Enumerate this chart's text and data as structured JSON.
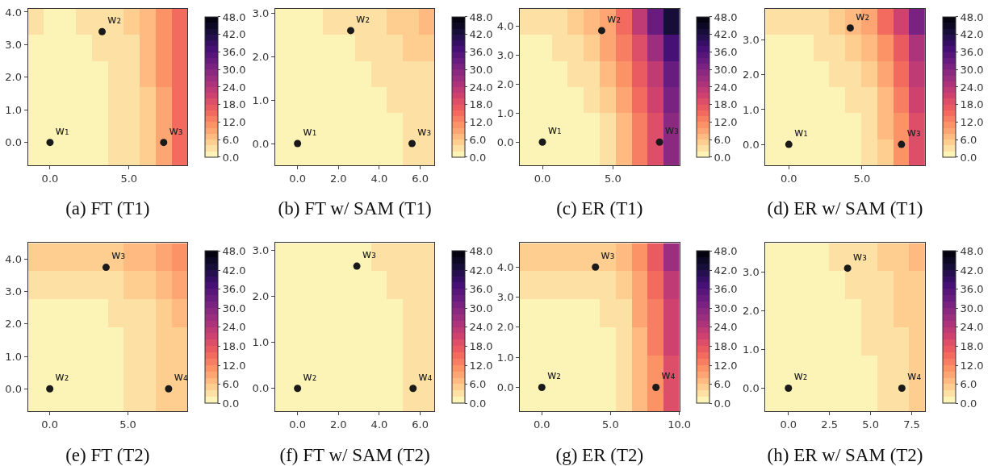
{
  "chart_data": [
    {
      "type": "heatmap",
      "xlabel": "(a) FT (T1)",
      "cells": [
        [
          3,
          1,
          1,
          3,
          3,
          3,
          5,
          7,
          11,
          15
        ],
        [
          1,
          1,
          1,
          1,
          3,
          3,
          3,
          7,
          11,
          15
        ],
        [
          1,
          1,
          1,
          1,
          1,
          3,
          3,
          7,
          11,
          15
        ],
        [
          1,
          1,
          1,
          1,
          1,
          3,
          3,
          5,
          9,
          15
        ],
        [
          1,
          1,
          1,
          1,
          1,
          3,
          3,
          5,
          9,
          15
        ],
        [
          1,
          1,
          1,
          1,
          1,
          3,
          3,
          5,
          9,
          15
        ]
      ],
      "clim": [
        0,
        48
      ],
      "cticks": [
        {
          "value": 0,
          "label": "0.0"
        },
        {
          "value": 6,
          "label": "6.0"
        },
        {
          "value": 12,
          "label": "12.0"
        },
        {
          "value": 18,
          "label": "18.0"
        },
        {
          "value": 24,
          "label": "24.0"
        },
        {
          "value": 30,
          "label": "30.0"
        },
        {
          "value": 36,
          "label": "36.0"
        },
        {
          "value": 42,
          "label": "42.0"
        },
        {
          "value": 48,
          "label": "48.0"
        }
      ],
      "xlim": [
        -1.4,
        8.7
      ],
      "ylim": [
        -0.7,
        4.1
      ],
      "xticks": [
        {
          "value": 0,
          "label": "0.0"
        },
        {
          "value": 5,
          "label": "5.0"
        }
      ],
      "yticks": [
        {
          "value": 0,
          "label": "0.0"
        },
        {
          "value": 1,
          "label": "1.0"
        },
        {
          "value": 2,
          "label": "2.0"
        },
        {
          "value": 3,
          "label": "3.0"
        },
        {
          "value": 4,
          "label": "4.0"
        }
      ],
      "marker": "circle",
      "series": [
        {
          "type": "scatter",
          "name": "w₁",
          "color": "#1a1a1a",
          "x": [
            0
          ],
          "values": [
            0
          ]
        },
        {
          "type": "scatter",
          "name": "w₂",
          "color": "#1a1a1a",
          "x": [
            3.3
          ],
          "values": [
            3.4
          ]
        },
        {
          "type": "scatter",
          "name": "w₃",
          "color": "#1a1a1a",
          "x": [
            7.2
          ],
          "values": [
            0
          ]
        }
      ]
    },
    {
      "type": "heatmap",
      "xlabel": "(b) FT w/ SAM (T1)",
      "cells": [
        [
          1,
          1,
          1,
          3,
          3,
          3,
          3,
          5,
          5,
          7
        ],
        [
          1,
          1,
          1,
          1,
          1,
          3,
          3,
          3,
          5,
          5
        ],
        [
          1,
          1,
          1,
          1,
          1,
          1,
          3,
          3,
          3,
          3
        ],
        [
          1,
          1,
          1,
          1,
          1,
          1,
          1,
          3,
          3,
          3
        ],
        [
          1,
          1,
          1,
          1,
          1,
          1,
          1,
          1,
          3,
          3
        ],
        [
          1,
          1,
          1,
          1,
          1,
          1,
          1,
          1,
          3,
          3
        ]
      ],
      "clim": [
        0,
        48
      ],
      "cticks": [
        {
          "value": 0,
          "label": "0.0"
        },
        {
          "value": 6,
          "label": "6.0"
        },
        {
          "value": 12,
          "label": "12.0"
        },
        {
          "value": 18,
          "label": "18.0"
        },
        {
          "value": 24,
          "label": "24.0"
        },
        {
          "value": 30,
          "label": "30.0"
        },
        {
          "value": 36,
          "label": "36.0"
        },
        {
          "value": 42,
          "label": "42.0"
        },
        {
          "value": 48,
          "label": "48.0"
        }
      ],
      "xlim": [
        -1.1,
        6.7
      ],
      "ylim": [
        -0.5,
        3.1
      ],
      "xticks": [
        {
          "value": 0,
          "label": "0.0"
        },
        {
          "value": 2,
          "label": "2.0"
        },
        {
          "value": 4,
          "label": "4.0"
        },
        {
          "value": 6,
          "label": "6.0"
        }
      ],
      "yticks": [
        {
          "value": 0,
          "label": "0.0"
        },
        {
          "value": 1,
          "label": "1.0"
        },
        {
          "value": 2,
          "label": "2.0"
        },
        {
          "value": 3,
          "label": "3.0"
        }
      ],
      "marker": "circle",
      "series": [
        {
          "type": "scatter",
          "name": "w₁",
          "color": "#1a1a1a",
          "x": [
            0
          ],
          "values": [
            0
          ]
        },
        {
          "type": "scatter",
          "name": "w₂",
          "color": "#1a1a1a",
          "x": [
            2.6
          ],
          "values": [
            2.6
          ]
        },
        {
          "type": "scatter",
          "name": "w₃",
          "color": "#1a1a1a",
          "x": [
            5.6
          ],
          "values": [
            0
          ]
        }
      ]
    },
    {
      "type": "heatmap",
      "xlabel": "(c) ER (T1)",
      "cells": [
        [
          3,
          3,
          3,
          5,
          7,
          9,
          15,
          23,
          33,
          43
        ],
        [
          1,
          1,
          3,
          3,
          5,
          9,
          13,
          19,
          27,
          37
        ],
        [
          1,
          1,
          1,
          3,
          3,
          7,
          11,
          17,
          23,
          33
        ],
        [
          1,
          1,
          1,
          1,
          3,
          5,
          9,
          15,
          21,
          31
        ],
        [
          1,
          1,
          1,
          1,
          1,
          3,
          7,
          13,
          19,
          29
        ],
        [
          1,
          1,
          1,
          1,
          1,
          3,
          7,
          13,
          19,
          29
        ]
      ],
      "clim": [
        0,
        48
      ],
      "cticks": [
        {
          "value": 0,
          "label": "0.0"
        },
        {
          "value": 6,
          "label": "6.0"
        },
        {
          "value": 12,
          "label": "12.0"
        },
        {
          "value": 18,
          "label": "18.0"
        },
        {
          "value": 24,
          "label": "24.0"
        },
        {
          "value": 30,
          "label": "30.0"
        },
        {
          "value": 36,
          "label": "36.0"
        },
        {
          "value": 42,
          "label": "42.0"
        },
        {
          "value": 48,
          "label": "48.0"
        }
      ],
      "xlim": [
        -1.6,
        9.7
      ],
      "ylim": [
        -0.8,
        4.6
      ],
      "xticks": [
        {
          "value": 0,
          "label": "0.0"
        },
        {
          "value": 5,
          "label": "5.0"
        }
      ],
      "yticks": [
        {
          "value": 0,
          "label": "0.0"
        },
        {
          "value": 1,
          "label": "1.0"
        },
        {
          "value": 2,
          "label": "2.0"
        },
        {
          "value": 3,
          "label": "3.0"
        },
        {
          "value": 4,
          "label": "4.0"
        }
      ],
      "marker": "circle",
      "series": [
        {
          "type": "scatter",
          "name": "w₁",
          "color": "#1a1a1a",
          "x": [
            0
          ],
          "values": [
            0
          ]
        },
        {
          "type": "scatter",
          "name": "w₂",
          "color": "#1a1a1a",
          "x": [
            4.2
          ],
          "values": [
            3.85
          ]
        },
        {
          "type": "scatter",
          "name": "w₃",
          "color": "#1a1a1a",
          "x": [
            8.3
          ],
          "values": [
            0
          ]
        }
      ]
    },
    {
      "type": "heatmap",
      "xlabel": "(d) ER w/ SAM (T1)",
      "cells": [
        [
          3,
          3,
          3,
          3,
          5,
          7,
          9,
          15,
          21,
          31
        ],
        [
          1,
          1,
          1,
          3,
          3,
          5,
          7,
          11,
          17,
          25
        ],
        [
          1,
          1,
          1,
          1,
          3,
          3,
          5,
          9,
          15,
          23
        ],
        [
          1,
          1,
          1,
          1,
          1,
          3,
          3,
          7,
          13,
          21
        ],
        [
          1,
          1,
          1,
          1,
          1,
          1,
          3,
          7,
          11,
          19
        ],
        [
          1,
          1,
          1,
          1,
          1,
          1,
          3,
          5,
          11,
          19
        ]
      ],
      "clim": [
        0,
        48
      ],
      "cticks": [
        {
          "value": 0,
          "label": "0.0"
        },
        {
          "value": 6,
          "label": "6.0"
        },
        {
          "value": 12,
          "label": "12.0"
        },
        {
          "value": 18,
          "label": "18.0"
        },
        {
          "value": 24,
          "label": "24.0"
        },
        {
          "value": 30,
          "label": "30.0"
        },
        {
          "value": 36,
          "label": "36.0"
        },
        {
          "value": 42,
          "label": "42.0"
        },
        {
          "value": 48,
          "label": "48.0"
        }
      ],
      "xlim": [
        -1.6,
        9.3
      ],
      "ylim": [
        -0.6,
        3.9
      ],
      "xticks": [
        {
          "value": 0,
          "label": "0.0"
        },
        {
          "value": 5,
          "label": "5.0"
        }
      ],
      "yticks": [
        {
          "value": 0,
          "label": "0.0"
        },
        {
          "value": 1,
          "label": "1.0"
        },
        {
          "value": 2,
          "label": "2.0"
        },
        {
          "value": 3,
          "label": "3.0"
        }
      ],
      "marker": "circle",
      "series": [
        {
          "type": "scatter",
          "name": "w₁",
          "color": "#1a1a1a",
          "x": [
            0
          ],
          "values": [
            0
          ]
        },
        {
          "type": "scatter",
          "name": "w₂",
          "color": "#1a1a1a",
          "x": [
            4.2
          ],
          "values": [
            3.35
          ]
        },
        {
          "type": "scatter",
          "name": "w₃",
          "color": "#1a1a1a",
          "x": [
            7.7
          ],
          "values": [
            0
          ]
        }
      ]
    },
    {
      "type": "heatmap",
      "xlabel": "(e) FT (T2)",
      "cells": [
        [
          5,
          5,
          5,
          5,
          5,
          5,
          7,
          7,
          9,
          11
        ],
        [
          3,
          3,
          3,
          3,
          3,
          3,
          5,
          5,
          7,
          9
        ],
        [
          1,
          1,
          1,
          1,
          1,
          3,
          3,
          3,
          5,
          7
        ],
        [
          1,
          1,
          1,
          1,
          1,
          1,
          3,
          3,
          5,
          5
        ],
        [
          1,
          1,
          1,
          1,
          1,
          1,
          3,
          3,
          5,
          5
        ],
        [
          1,
          1,
          1,
          1,
          1,
          1,
          3,
          3,
          5,
          5
        ]
      ],
      "clim": [
        0,
        48
      ],
      "cticks": [
        {
          "value": 0,
          "label": "0.0"
        },
        {
          "value": 6,
          "label": "6.0"
        },
        {
          "value": 12,
          "label": "12.0"
        },
        {
          "value": 18,
          "label": "18.0"
        },
        {
          "value": 24,
          "label": "24.0"
        },
        {
          "value": 30,
          "label": "30.0"
        },
        {
          "value": 36,
          "label": "36.0"
        },
        {
          "value": 42,
          "label": "42.0"
        },
        {
          "value": 48,
          "label": "48.0"
        }
      ],
      "xlim": [
        -1.4,
        8.8
      ],
      "ylim": [
        -0.7,
        4.5
      ],
      "xticks": [
        {
          "value": 0,
          "label": "0.0"
        },
        {
          "value": 5,
          "label": "5.0"
        }
      ],
      "yticks": [
        {
          "value": 0,
          "label": "0.0"
        },
        {
          "value": 1,
          "label": "1.0"
        },
        {
          "value": 2,
          "label": "2.0"
        },
        {
          "value": 3,
          "label": "3.0"
        },
        {
          "value": 4,
          "label": "4.0"
        }
      ],
      "marker": "circle",
      "series": [
        {
          "type": "scatter",
          "name": "w₂",
          "color": "#1a1a1a",
          "x": [
            0
          ],
          "values": [
            0
          ]
        },
        {
          "type": "scatter",
          "name": "w₃",
          "color": "#1a1a1a",
          "x": [
            3.6
          ],
          "values": [
            3.75
          ]
        },
        {
          "type": "scatter",
          "name": "w₄",
          "color": "#1a1a1a",
          "x": [
            7.6
          ],
          "values": [
            0
          ]
        }
      ]
    },
    {
      "type": "heatmap",
      "xlabel": "(f) FT w/ SAM (T2)",
      "cells": [
        [
          1,
          1,
          1,
          1,
          1,
          1,
          3,
          3,
          3,
          3
        ],
        [
          1,
          1,
          1,
          1,
          1,
          1,
          1,
          3,
          3,
          3
        ],
        [
          1,
          1,
          1,
          1,
          1,
          1,
          1,
          1,
          3,
          3
        ],
        [
          1,
          1,
          1,
          1,
          1,
          1,
          1,
          1,
          3,
          3
        ],
        [
          1,
          1,
          1,
          1,
          1,
          1,
          1,
          1,
          3,
          3
        ],
        [
          1,
          1,
          1,
          1,
          1,
          1,
          1,
          1,
          3,
          3
        ]
      ],
      "clim": [
        0,
        48
      ],
      "cticks": [
        {
          "value": 0,
          "label": "0.0"
        },
        {
          "value": 6,
          "label": "6.0"
        },
        {
          "value": 12,
          "label": "12.0"
        },
        {
          "value": 18,
          "label": "18.0"
        },
        {
          "value": 24,
          "label": "24.0"
        },
        {
          "value": 30,
          "label": "30.0"
        },
        {
          "value": 36,
          "label": "36.0"
        },
        {
          "value": 42,
          "label": "42.0"
        },
        {
          "value": 48,
          "label": "48.0"
        }
      ],
      "xlim": [
        -1.1,
        6.7
      ],
      "ylim": [
        -0.5,
        3.15
      ],
      "xticks": [
        {
          "value": 0,
          "label": "0.0"
        },
        {
          "value": 2,
          "label": "2.0"
        },
        {
          "value": 4,
          "label": "4.0"
        },
        {
          "value": 6,
          "label": "6.0"
        }
      ],
      "yticks": [
        {
          "value": 0,
          "label": "0.0"
        },
        {
          "value": 1,
          "label": "1.0"
        },
        {
          "value": 2,
          "label": "2.0"
        },
        {
          "value": 3,
          "label": "3.0"
        }
      ],
      "marker": "circle",
      "series": [
        {
          "type": "scatter",
          "name": "w₂",
          "color": "#1a1a1a",
          "x": [
            0
          ],
          "values": [
            0
          ]
        },
        {
          "type": "scatter",
          "name": "w₃",
          "color": "#1a1a1a",
          "x": [
            2.9
          ],
          "values": [
            2.65
          ]
        },
        {
          "type": "scatter",
          "name": "w₄",
          "color": "#1a1a1a",
          "x": [
            5.65
          ],
          "values": [
            0
          ]
        }
      ]
    },
    {
      "type": "heatmap",
      "xlabel": "(g) ER (T2)",
      "cells": [
        [
          5,
          5,
          5,
          5,
          5,
          5,
          7,
          11,
          17,
          27
        ],
        [
          3,
          3,
          3,
          3,
          3,
          3,
          5,
          9,
          15,
          23
        ],
        [
          1,
          1,
          1,
          1,
          1,
          3,
          3,
          9,
          13,
          21
        ],
        [
          1,
          1,
          1,
          1,
          1,
          1,
          3,
          7,
          13,
          21
        ],
        [
          1,
          1,
          1,
          1,
          1,
          1,
          3,
          7,
          11,
          19
        ],
        [
          1,
          1,
          1,
          1,
          1,
          1,
          3,
          7,
          11,
          19
        ]
      ],
      "clim": [
        0,
        48
      ],
      "cticks": [
        {
          "value": 0,
          "label": "0.0"
        },
        {
          "value": 6,
          "label": "6.0"
        },
        {
          "value": 12,
          "label": "12.0"
        },
        {
          "value": 18,
          "label": "18.0"
        },
        {
          "value": 24,
          "label": "24.0"
        },
        {
          "value": 30,
          "label": "30.0"
        },
        {
          "value": 36,
          "label": "36.0"
        },
        {
          "value": 42,
          "label": "42.0"
        },
        {
          "value": 48,
          "label": "48.0"
        }
      ],
      "xlim": [
        -1.6,
        10
      ],
      "ylim": [
        -0.8,
        4.8
      ],
      "xticks": [
        {
          "value": 0,
          "label": "0.0"
        },
        {
          "value": 5,
          "label": "5.0"
        },
        {
          "value": 10,
          "label": "10.0"
        }
      ],
      "yticks": [
        {
          "value": 0,
          "label": "0.0"
        },
        {
          "value": 1,
          "label": "1.0"
        },
        {
          "value": 2,
          "label": "2.0"
        },
        {
          "value": 3,
          "label": "3.0"
        },
        {
          "value": 4,
          "label": "4.0"
        }
      ],
      "marker": "circle",
      "series": [
        {
          "type": "scatter",
          "name": "w₂",
          "color": "#1a1a1a",
          "x": [
            0
          ],
          "values": [
            0
          ]
        },
        {
          "type": "scatter",
          "name": "w₃",
          "color": "#1a1a1a",
          "x": [
            3.9
          ],
          "values": [
            4.0
          ]
        },
        {
          "type": "scatter",
          "name": "w₄",
          "color": "#1a1a1a",
          "x": [
            8.3
          ],
          "values": [
            0
          ]
        }
      ]
    },
    {
      "type": "heatmap",
      "xlabel": "(h) ER w/ SAM (T2)",
      "cells": [
        [
          1,
          1,
          1,
          1,
          3,
          3,
          3,
          5,
          5,
          7
        ],
        [
          1,
          1,
          1,
          1,
          1,
          3,
          3,
          3,
          5,
          5
        ],
        [
          1,
          1,
          1,
          1,
          1,
          1,
          3,
          3,
          5,
          5
        ],
        [
          1,
          1,
          1,
          1,
          1,
          1,
          3,
          3,
          3,
          5
        ],
        [
          1,
          1,
          1,
          1,
          1,
          1,
          1,
          3,
          3,
          5
        ],
        [
          1,
          1,
          1,
          1,
          1,
          1,
          1,
          3,
          3,
          5
        ]
      ],
      "clim": [
        0,
        48
      ],
      "cticks": [
        {
          "value": 0,
          "label": "0.0"
        },
        {
          "value": 6,
          "label": "6.0"
        },
        {
          "value": 12,
          "label": "12.0"
        },
        {
          "value": 18,
          "label": "18.0"
        },
        {
          "value": 24,
          "label": "24.0"
        },
        {
          "value": 30,
          "label": "30.0"
        },
        {
          "value": 36,
          "label": "36.0"
        },
        {
          "value": 42,
          "label": "42.0"
        },
        {
          "value": 48,
          "label": "48.0"
        }
      ],
      "xlim": [
        -1.4,
        8.3
      ],
      "ylim": [
        -0.6,
        3.75
      ],
      "xticks": [
        {
          "value": 0,
          "label": "0.0"
        },
        {
          "value": 2.5,
          "label": "2.5"
        },
        {
          "value": 5,
          "label": "5.0"
        },
        {
          "value": 7.5,
          "label": "7.5"
        }
      ],
      "yticks": [
        {
          "value": 0,
          "label": "0.0"
        },
        {
          "value": 1,
          "label": "1.0"
        },
        {
          "value": 2,
          "label": "2.0"
        },
        {
          "value": 3,
          "label": "3.0"
        }
      ],
      "marker": "circle",
      "series": [
        {
          "type": "scatter",
          "name": "w₂",
          "color": "#1a1a1a",
          "x": [
            0
          ],
          "values": [
            0
          ]
        },
        {
          "type": "scatter",
          "name": "w₃",
          "color": "#1a1a1a",
          "x": [
            3.6
          ],
          "values": [
            3.1
          ]
        },
        {
          "type": "scatter",
          "name": "w₄",
          "color": "#1a1a1a",
          "x": [
            6.9
          ],
          "values": [
            0
          ]
        }
      ]
    }
  ]
}
